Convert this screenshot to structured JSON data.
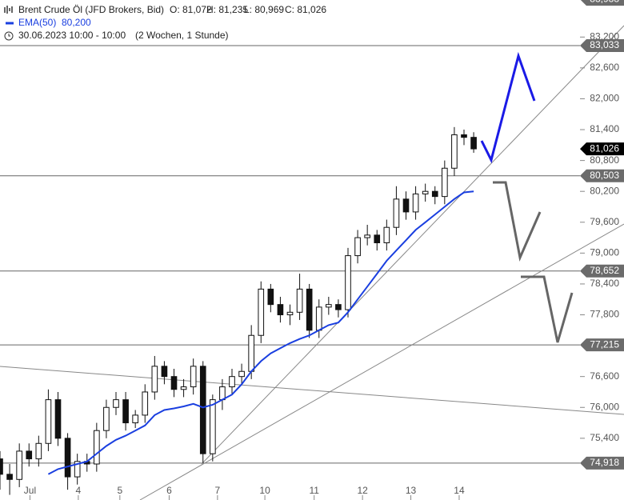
{
  "chart_data": {
    "type": "candlestick",
    "header": {
      "instrument": "Brent Crude Öl (JFD Brokers, Bid)",
      "open": "O: 81,072",
      "high": "H: 81,235",
      "low": "L: 80,969",
      "close": "C: 81,026",
      "period": "30.06.2023 10:00 - 10:00",
      "range": "(2 Wochen, 1 Stunde)"
    },
    "xlim": [
      0,
      60
    ],
    "ylim": [
      74200,
      83920
    ],
    "xticks": [
      {
        "value": 3.1,
        "label": "Jul"
      },
      {
        "value": 8.1,
        "label": "4"
      },
      {
        "value": 12.4,
        "label": "5"
      },
      {
        "value": 17.5,
        "label": "6"
      },
      {
        "value": 22.5,
        "label": "7"
      },
      {
        "value": 27.4,
        "label": "10"
      },
      {
        "value": 32.5,
        "label": "11"
      },
      {
        "value": 37.5,
        "label": "12"
      },
      {
        "value": 42.5,
        "label": "13"
      },
      {
        "value": 47.5,
        "label": "14"
      }
    ],
    "yticks": [
      {
        "value": 83200,
        "label": "83,200"
      },
      {
        "value": 82600,
        "label": "82,600"
      },
      {
        "value": 82000,
        "label": "82,000"
      },
      {
        "value": 81400,
        "label": "81,400"
      },
      {
        "value": 80800,
        "label": "80,800"
      },
      {
        "value": 80200,
        "label": "80,200"
      },
      {
        "value": 79600,
        "label": "79,600"
      },
      {
        "value": 79000,
        "label": "79,000"
      },
      {
        "value": 78400,
        "label": "78,400"
      },
      {
        "value": 77800,
        "label": "77,800"
      },
      {
        "value": 76600,
        "label": "76,600"
      },
      {
        "value": 76000,
        "label": "76,000"
      },
      {
        "value": 75400,
        "label": "75,400"
      }
    ],
    "levels": [
      {
        "value": 83933,
        "label": "83,933"
      },
      {
        "value": 83033,
        "label": "83,033"
      },
      {
        "value": 80503,
        "label": "80,503"
      },
      {
        "value": 78652,
        "label": "78,652"
      },
      {
        "value": 77215,
        "label": "77,215"
      },
      {
        "value": 74918,
        "label": "74,918"
      }
    ],
    "level_color": "#6b6b6b",
    "last_price": {
      "value": 81026,
      "label": "81,026"
    },
    "x": [
      0,
      1,
      2,
      3,
      4,
      5,
      6,
      7,
      8,
      9,
      10,
      11,
      12,
      13,
      14,
      15,
      16,
      17,
      18,
      19,
      20,
      21,
      22,
      23,
      24,
      25,
      26,
      27,
      28,
      29,
      30,
      31,
      32,
      33,
      34,
      35,
      36,
      37,
      38,
      39,
      40,
      41,
      42,
      43,
      44,
      45,
      46,
      47,
      48,
      49
    ],
    "open": [
      75000,
      74700,
      74600,
      75150,
      75000,
      75300,
      76150,
      75400,
      74650,
      74950,
      74900,
      75550,
      76000,
      76150,
      75700,
      75850,
      76300,
      76800,
      76600,
      76350,
      76400,
      76800,
      75100,
      76150,
      76400,
      76600,
      76700,
      77400,
      78300,
      78000,
      77800,
      77850,
      78300,
      77500,
      77950,
      78000,
      77900,
      78950,
      79300,
      79350,
      79200,
      79500,
      80050,
      79800,
      80150,
      80200,
      80100,
      80650,
      81300,
      81250
    ],
    "high": [
      75150,
      74900,
      75300,
      75300,
      75450,
      76350,
      76300,
      75500,
      75100,
      75100,
      75700,
      76150,
      76300,
      76300,
      75950,
      76450,
      77000,
      76900,
      76750,
      76550,
      76950,
      76900,
      76250,
      76550,
      76750,
      76850,
      77600,
      78450,
      78400,
      78150,
      78000,
      78600,
      78400,
      78100,
      78150,
      78100,
      79100,
      79450,
      79550,
      79450,
      79650,
      80300,
      80200,
      80300,
      80350,
      80300,
      80800,
      81450,
      81400,
      81350
    ],
    "low": [
      74400,
      74300,
      74450,
      74850,
      74850,
      75150,
      75250,
      74400,
      74500,
      74750,
      74750,
      75400,
      75850,
      75550,
      75600,
      75700,
      76150,
      76450,
      76200,
      76200,
      76250,
      74918,
      74950,
      75950,
      76250,
      76450,
      76550,
      77250,
      77850,
      77650,
      77600,
      77700,
      77350,
      77350,
      77800,
      77750,
      77750,
      78800,
      79150,
      79050,
      79050,
      79350,
      79650,
      79650,
      80000,
      79950,
      79950,
      80500,
      81100,
      80950
    ],
    "close": [
      74700,
      74600,
      75150,
      75000,
      75300,
      76150,
      75400,
      74650,
      74950,
      74900,
      75550,
      76000,
      76150,
      75700,
      75850,
      76300,
      76800,
      76600,
      76350,
      76400,
      76800,
      75100,
      76150,
      76400,
      76600,
      76700,
      77400,
      78300,
      78000,
      77800,
      77850,
      78300,
      77500,
      77950,
      78000,
      77900,
      78950,
      79300,
      79350,
      79200,
      79500,
      80050,
      79800,
      80150,
      80200,
      80100,
      80650,
      81300,
      81250,
      81026
    ],
    "ema": {
      "name": "EMA(50)",
      "last_label": "80,200",
      "color": "#1a3fe0",
      "values": [
        null,
        null,
        null,
        null,
        null,
        74700,
        74800,
        74850,
        74900,
        74950,
        75100,
        75250,
        75370,
        75450,
        75550,
        75650,
        75850,
        75950,
        75980,
        76020,
        76070,
        76000,
        76050,
        76150,
        76250,
        76450,
        76700,
        76900,
        77050,
        77150,
        77250,
        77330,
        77400,
        77500,
        77600,
        77650,
        77850,
        78100,
        78350,
        78600,
        78850,
        79050,
        79250,
        79450,
        79600,
        79750,
        79900,
        80050,
        80180,
        80200
      ]
    }
  }
}
